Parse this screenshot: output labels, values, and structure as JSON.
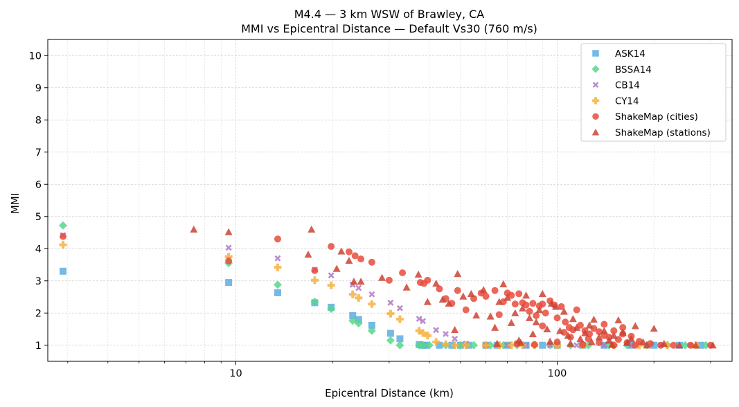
{
  "chart_data": {
    "type": "scatter",
    "title": "M4.4 — 3 km WSW of Brawley, CA",
    "subtitle": "MMI vs Epicentral Distance — Default Vs30 (760 m/s)",
    "xlabel": "Epicentral Distance (km)",
    "ylabel": "MMI",
    "xscale": "log",
    "xlim": [
      2.6,
      350
    ],
    "ylim": [
      0.5,
      10.5
    ],
    "x_ticks": [
      10,
      100
    ],
    "x_tick_labels": [
      "10",
      "100"
    ],
    "y_ticks": [
      1,
      2,
      3,
      4,
      5,
      6,
      7,
      8,
      9,
      10
    ],
    "y_tick_labels": [
      "1",
      "2",
      "3",
      "4",
      "5",
      "6",
      "7",
      "8",
      "9",
      "10"
    ],
    "grid": true,
    "legend_position": "top-right",
    "colors": {
      "ASK14": "#5DADE2",
      "BSSA14": "#58D68D",
      "CB14": "#AF7AC5",
      "CY14": "#F5B041",
      "ShakeMap (cities)": "#E74C3C",
      "ShakeMap (stations)": "#CB4335"
    },
    "series": [
      {
        "name": "ASK14",
        "marker": "square",
        "color": "#5DADE2",
        "points": [
          [
            2.9,
            3.3
          ],
          [
            9.5,
            2.95
          ],
          [
            13.5,
            2.63
          ],
          [
            17.6,
            2.32
          ],
          [
            19.8,
            2.18
          ],
          [
            23.1,
            1.92
          ],
          [
            24.1,
            1.8
          ],
          [
            26.5,
            1.62
          ],
          [
            30.3,
            1.37
          ],
          [
            32.4,
            1.2
          ],
          [
            37.2,
            1.02
          ],
          [
            38.2,
            1.0
          ],
          [
            39.0,
            1.0
          ],
          [
            43.0,
            1.0
          ],
          [
            47.0,
            1.0
          ],
          [
            50.0,
            1.0
          ],
          [
            53.0,
            1.0
          ],
          [
            60.0,
            1.0
          ],
          [
            65.0,
            1.0
          ],
          [
            70.0,
            1.0
          ],
          [
            80.0,
            1.0
          ],
          [
            90.0,
            1.0
          ],
          [
            100.0,
            1.0
          ],
          [
            120.0,
            1.0
          ],
          [
            140.0,
            1.0
          ],
          [
            170.0,
            1.0
          ],
          [
            200.0,
            1.0
          ],
          [
            240.0,
            1.0
          ],
          [
            280.0,
            1.0
          ]
        ]
      },
      {
        "name": "BSSA14",
        "marker": "diamond",
        "color": "#58D68D",
        "points": [
          [
            2.9,
            4.72
          ],
          [
            9.5,
            3.55
          ],
          [
            13.5,
            2.88
          ],
          [
            17.6,
            2.35
          ],
          [
            19.8,
            2.13
          ],
          [
            23.1,
            1.76
          ],
          [
            24.1,
            1.68
          ],
          [
            26.5,
            1.45
          ],
          [
            30.3,
            1.15
          ],
          [
            32.4,
            1.0
          ],
          [
            37.2,
            1.0
          ],
          [
            38.2,
            1.0
          ],
          [
            40.0,
            1.0
          ],
          [
            45.0,
            1.0
          ],
          [
            50.0,
            1.0
          ],
          [
            55.0,
            1.0
          ],
          [
            62.0,
            1.0
          ],
          [
            68.0,
            1.0
          ],
          [
            75.0,
            1.0
          ],
          [
            85.0,
            1.0
          ],
          [
            95.0,
            1.0
          ],
          [
            110.0,
            1.0
          ],
          [
            125.0,
            1.0
          ],
          [
            145.0,
            1.0
          ],
          [
            165.0,
            1.0
          ],
          [
            190.0,
            1.0
          ],
          [
            220.0,
            1.0
          ],
          [
            250.0,
            1.0
          ],
          [
            290.0,
            1.0
          ]
        ]
      },
      {
        "name": "CB14",
        "marker": "x",
        "color": "#AF7AC5",
        "points": [
          [
            2.9,
            4.42
          ],
          [
            9.5,
            4.03
          ],
          [
            13.5,
            3.7
          ],
          [
            17.6,
            3.35
          ],
          [
            19.8,
            3.17
          ],
          [
            23.1,
            2.88
          ],
          [
            24.1,
            2.78
          ],
          [
            26.5,
            2.58
          ],
          [
            30.3,
            2.32
          ],
          [
            32.4,
            2.15
          ],
          [
            37.2,
            1.82
          ],
          [
            38.2,
            1.75
          ],
          [
            42.0,
            1.47
          ],
          [
            45.0,
            1.35
          ],
          [
            48.0,
            1.2
          ],
          [
            52.0,
            1.05
          ],
          [
            60.0,
            1.0
          ],
          [
            70.0,
            1.0
          ],
          [
            80.0,
            1.0
          ],
          [
            95.0,
            1.0
          ],
          [
            115.0,
            1.0
          ],
          [
            140.0,
            1.0
          ],
          [
            170.0,
            1.0
          ],
          [
            210.0,
            1.0
          ],
          [
            260.0,
            1.0
          ]
        ]
      },
      {
        "name": "CY14",
        "marker": "plus",
        "color": "#F5B041",
        "points": [
          [
            2.9,
            4.12
          ],
          [
            9.5,
            3.75
          ],
          [
            13.5,
            3.42
          ],
          [
            17.6,
            3.02
          ],
          [
            19.8,
            2.86
          ],
          [
            23.1,
            2.58
          ],
          [
            24.1,
            2.47
          ],
          [
            26.5,
            2.28
          ],
          [
            30.3,
            1.98
          ],
          [
            32.4,
            1.81
          ],
          [
            37.2,
            1.45
          ],
          [
            38.2,
            1.38
          ],
          [
            39.5,
            1.3
          ],
          [
            42.0,
            1.1
          ],
          [
            45.0,
            1.03
          ],
          [
            48.0,
            1.0
          ],
          [
            52.0,
            1.0
          ],
          [
            60.0,
            1.0
          ],
          [
            66.0,
            1.0
          ],
          [
            72.0,
            1.0
          ],
          [
            78.0,
            1.0
          ],
          [
            85.0,
            1.0
          ],
          [
            100.0,
            1.0
          ],
          [
            120.0,
            1.0
          ],
          [
            150.0,
            1.0
          ],
          [
            180.0,
            1.0
          ],
          [
            220.0,
            1.0
          ],
          [
            270.0,
            1.0
          ]
        ]
      },
      {
        "name": "ShakeMap (cities)",
        "marker": "circle",
        "color": "#E74C3C",
        "points": [
          [
            2.9,
            4.38
          ],
          [
            9.5,
            3.62
          ],
          [
            13.5,
            4.3
          ],
          [
            17.6,
            3.32
          ],
          [
            19.8,
            4.07
          ],
          [
            22.5,
            3.9
          ],
          [
            23.5,
            3.78
          ],
          [
            24.5,
            3.68
          ],
          [
            26.5,
            3.58
          ],
          [
            30.0,
            3.02
          ],
          [
            33.0,
            3.25
          ],
          [
            37.5,
            2.95
          ],
          [
            38.5,
            2.92
          ],
          [
            39.5,
            3.02
          ],
          [
            43.0,
            2.75
          ],
          [
            45.0,
            2.45
          ],
          [
            47.0,
            2.3
          ],
          [
            49.0,
            2.7
          ],
          [
            52.0,
            2.1
          ],
          [
            55.0,
            2.45
          ],
          [
            58.0,
            2.62
          ],
          [
            60.0,
            2.52
          ],
          [
            64.0,
            2.7
          ],
          [
            66.0,
            1.95
          ],
          [
            68.0,
            2.35
          ],
          [
            70.0,
            2.62
          ],
          [
            72.0,
            2.55
          ],
          [
            74.0,
            2.28
          ],
          [
            76.0,
            2.6
          ],
          [
            78.0,
            2.32
          ],
          [
            80.0,
            2.25
          ],
          [
            82.0,
            2.05
          ],
          [
            84.0,
            2.3
          ],
          [
            86.0,
            1.92
          ],
          [
            88.0,
            2.22
          ],
          [
            90.0,
            2.28
          ],
          [
            92.0,
            2.0
          ],
          [
            95.0,
            2.38
          ],
          [
            98.0,
            2.25
          ],
          [
            100.0,
            1.85
          ],
          [
            103.0,
            2.2
          ],
          [
            106.0,
            1.72
          ],
          [
            109.0,
            1.55
          ],
          [
            112.0,
            1.48
          ],
          [
            115.0,
            2.1
          ],
          [
            118.0,
            1.62
          ],
          [
            122.0,
            1.45
          ],
          [
            126.0,
            1.35
          ],
          [
            130.0,
            1.52
          ],
          [
            135.0,
            1.42
          ],
          [
            140.0,
            1.3
          ],
          [
            145.0,
            1.25
          ],
          [
            150.0,
            1.45
          ],
          [
            155.0,
            1.18
          ],
          [
            160.0,
            1.35
          ],
          [
            165.0,
            1.08
          ],
          [
            170.0,
            1.28
          ],
          [
            180.0,
            1.12
          ],
          [
            195.0,
            1.05
          ],
          [
            210.0,
            1.0
          ],
          [
            230.0,
            1.0
          ],
          [
            260.0,
            1.0
          ],
          [
            300.0,
            1.0
          ],
          [
            75.0,
            1.05
          ],
          [
            85.0,
            1.02
          ],
          [
            100.0,
            1.1
          ],
          [
            110.0,
            1.25
          ],
          [
            120.0,
            1.02
          ],
          [
            135.0,
            1.08
          ],
          [
            150.0,
            1.0
          ],
          [
            175.0,
            1.0
          ],
          [
            90.0,
            1.6
          ],
          [
            105.0,
            1.4
          ],
          [
            125.0,
            1.2
          ],
          [
            140.0,
            1.65
          ],
          [
            160.0,
            1.55
          ]
        ]
      },
      {
        "name": "ShakeMap (stations)",
        "marker": "triangle",
        "color": "#CB4335",
        "points": [
          [
            7.4,
            4.6
          ],
          [
            9.5,
            4.52
          ],
          [
            17.2,
            4.6
          ],
          [
            16.8,
            3.82
          ],
          [
            20.6,
            3.38
          ],
          [
            21.3,
            3.92
          ],
          [
            22.5,
            3.63
          ],
          [
            23.3,
            2.98
          ],
          [
            24.5,
            2.98
          ],
          [
            28.5,
            3.1
          ],
          [
            34.0,
            2.8
          ],
          [
            37.0,
            3.2
          ],
          [
            39.5,
            2.35
          ],
          [
            42.0,
            2.92
          ],
          [
            44.0,
            2.42
          ],
          [
            46.0,
            2.3
          ],
          [
            48.0,
            1.48
          ],
          [
            49.0,
            3.22
          ],
          [
            51.0,
            2.52
          ],
          [
            54.0,
            2.6
          ],
          [
            56.0,
            1.93
          ],
          [
            59.0,
            2.72
          ],
          [
            62.0,
            1.9
          ],
          [
            64.0,
            1.55
          ],
          [
            66.0,
            2.35
          ],
          [
            68.0,
            2.9
          ],
          [
            70.0,
            2.48
          ],
          [
            72.0,
            1.7
          ],
          [
            74.0,
            2.0
          ],
          [
            76.0,
            1.15
          ],
          [
            78.0,
            2.15
          ],
          [
            80.0,
            2.55
          ],
          [
            82.0,
            1.85
          ],
          [
            84.0,
            1.35
          ],
          [
            86.0,
            1.72
          ],
          [
            88.0,
            2.1
          ],
          [
            90.0,
            2.6
          ],
          [
            93.0,
            1.5
          ],
          [
            96.0,
            2.3
          ],
          [
            99.0,
            2.2
          ],
          [
            102.0,
            1.45
          ],
          [
            105.0,
            2.05
          ],
          [
            108.0,
            1.3
          ],
          [
            112.0,
            1.82
          ],
          [
            115.0,
            1.55
          ],
          [
            118.0,
            1.2
          ],
          [
            122.0,
            1.38
          ],
          [
            126.0,
            1.62
          ],
          [
            130.0,
            1.8
          ],
          [
            135.0,
            1.25
          ],
          [
            140.0,
            1.45
          ],
          [
            145.0,
            1.15
          ],
          [
            150.0,
            1.3
          ],
          [
            155.0,
            1.78
          ],
          [
            160.0,
            1.4
          ],
          [
            165.0,
            1.08
          ],
          [
            170.0,
            1.2
          ],
          [
            175.0,
            1.6
          ],
          [
            185.0,
            1.1
          ],
          [
            200.0,
            1.52
          ],
          [
            215.0,
            1.05
          ],
          [
            240.0,
            1.0
          ],
          [
            270.0,
            1.0
          ],
          [
            305.0,
            1.0
          ],
          [
            65.0,
            1.05
          ],
          [
            77.0,
            1.08
          ],
          [
            95.0,
            1.12
          ],
          [
            110.0,
            1.05
          ],
          [
            128.0,
            1.1
          ],
          [
            148.0,
            1.02
          ],
          [
            190.0,
            1.0
          ]
        ]
      }
    ]
  }
}
